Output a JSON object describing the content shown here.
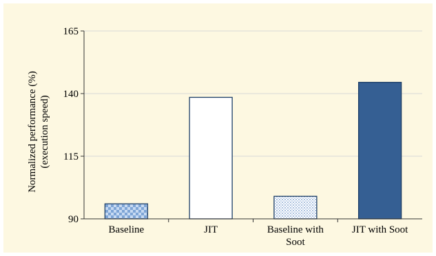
{
  "chart_data": {
    "type": "bar",
    "title": "",
    "xlabel": "",
    "ylabel_lines": [
      "Normalized performance (%)",
      "(execution speed)"
    ],
    "ylim": [
      90,
      165
    ],
    "yticks": [
      90,
      115,
      140,
      165
    ],
    "grid": true,
    "categories": [
      [
        "Baseline"
      ],
      [
        "JIT"
      ],
      [
        "Baseline with",
        "Soot"
      ],
      [
        "JIT with Soot"
      ]
    ],
    "values": [
      96,
      138.5,
      99,
      144.5
    ],
    "bar_styles": [
      {
        "pattern": "checker",
        "fill": "#a9c6ec",
        "stroke": "#1c3d66"
      },
      {
        "pattern": "none",
        "fill": "#ffffff",
        "stroke": "#1c3d66"
      },
      {
        "pattern": "dots",
        "fill": "#7aa0d4",
        "stroke": "#1c3d66"
      },
      {
        "pattern": "solid",
        "fill": "#355f93",
        "stroke": "#1c3d66"
      }
    ]
  }
}
